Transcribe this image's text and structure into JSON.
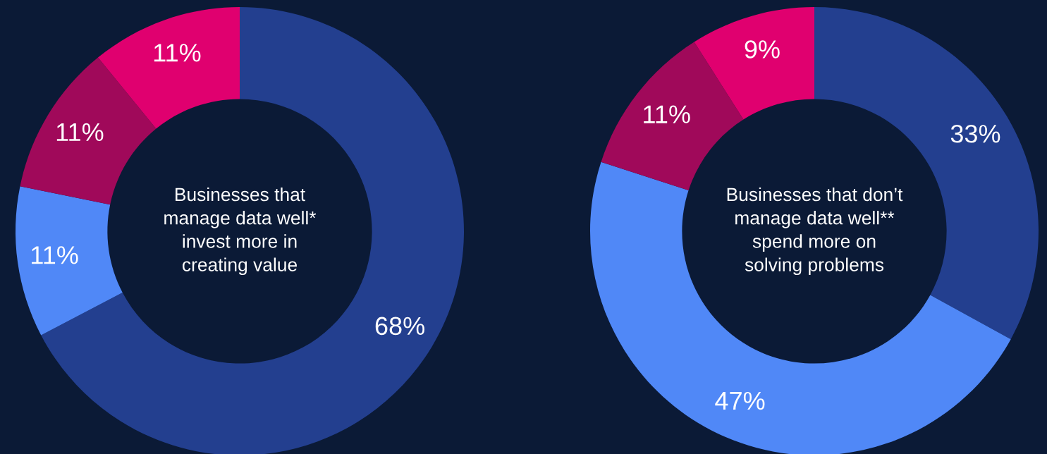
{
  "chart_data": [
    {
      "type": "donut",
      "title": "Businesses that\nmanage data well*\ninvest more in\ncreating value",
      "categories": [
        null,
        null,
        null,
        null
      ],
      "values": [
        68,
        11,
        11,
        11
      ],
      "value_labels": [
        "68%",
        "11%",
        "11%",
        "11%"
      ],
      "colors": [
        "#233f8f",
        "#5088f7",
        "#a0095a",
        "#e0006f"
      ]
    },
    {
      "type": "donut",
      "title": "Businesses that don’t\nmanage data well**\nspend more on\nsolving problems",
      "categories": [
        null,
        null,
        null,
        null
      ],
      "values": [
        33,
        47,
        11,
        9
      ],
      "value_labels": [
        "33%",
        "47%",
        "11%",
        "9%"
      ],
      "colors": [
        "#233f8f",
        "#5088f7",
        "#a0095a",
        "#e0006f"
      ]
    }
  ]
}
